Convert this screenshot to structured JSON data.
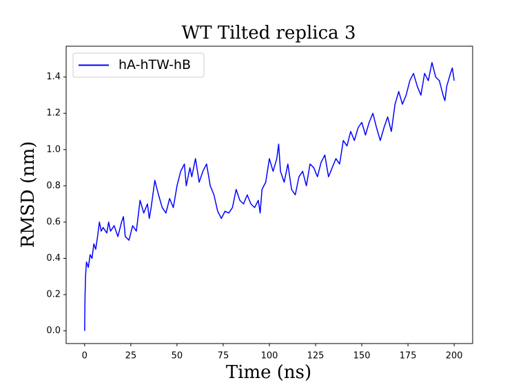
{
  "chart_data": {
    "type": "line",
    "title": "WT Tilted replica 3",
    "xlabel": "Time (ns)",
    "ylabel": "RMSD (nm)",
    "x": [
      0,
      0.2,
      0.5,
      1,
      2,
      3,
      4,
      5,
      6,
      7,
      8,
      9,
      10,
      12,
      13,
      14,
      16,
      18,
      20,
      21,
      22,
      24,
      26,
      28,
      30,
      32,
      34,
      35,
      36,
      38,
      40,
      42,
      44,
      46,
      48,
      50,
      52,
      54,
      55,
      57,
      58,
      60,
      62,
      64,
      66,
      68,
      70,
      72,
      74,
      76,
      78,
      80,
      82,
      84,
      86,
      88,
      90,
      92,
      94,
      95,
      96,
      98,
      100,
      102,
      104,
      105,
      106,
      108,
      110,
      112,
      114,
      116,
      118,
      120,
      122,
      124,
      126,
      128,
      130,
      132,
      134,
      136,
      138,
      140,
      142,
      144,
      146,
      148,
      150,
      152,
      154,
      156,
      158,
      160,
      162,
      164,
      166,
      168,
      170,
      172,
      174,
      176,
      178,
      180,
      182,
      184,
      186,
      188,
      190,
      192,
      194,
      195,
      196,
      198,
      199,
      200
    ],
    "series": [
      {
        "name": "hA-hTW-hB",
        "color": "#0000ff",
        "values": [
          0.0,
          0.18,
          0.3,
          0.38,
          0.35,
          0.42,
          0.4,
          0.48,
          0.45,
          0.52,
          0.6,
          0.55,
          0.57,
          0.54,
          0.6,
          0.55,
          0.58,
          0.52,
          0.6,
          0.63,
          0.52,
          0.5,
          0.58,
          0.55,
          0.72,
          0.65,
          0.7,
          0.62,
          0.68,
          0.83,
          0.75,
          0.68,
          0.65,
          0.73,
          0.68,
          0.8,
          0.88,
          0.92,
          0.8,
          0.9,
          0.85,
          0.95,
          0.82,
          0.88,
          0.92,
          0.8,
          0.75,
          0.66,
          0.62,
          0.66,
          0.65,
          0.68,
          0.78,
          0.72,
          0.7,
          0.75,
          0.7,
          0.68,
          0.72,
          0.65,
          0.78,
          0.82,
          0.95,
          0.88,
          0.95,
          1.03,
          0.88,
          0.82,
          0.92,
          0.78,
          0.75,
          0.85,
          0.88,
          0.8,
          0.92,
          0.9,
          0.85,
          0.93,
          0.97,
          0.85,
          0.9,
          0.95,
          0.92,
          1.05,
          1.02,
          1.1,
          1.05,
          1.12,
          1.15,
          1.08,
          1.15,
          1.2,
          1.12,
          1.05,
          1.12,
          1.18,
          1.1,
          1.25,
          1.32,
          1.25,
          1.3,
          1.38,
          1.42,
          1.35,
          1.3,
          1.42,
          1.38,
          1.48,
          1.4,
          1.38,
          1.3,
          1.27,
          1.35,
          1.42,
          1.45,
          1.38
        ]
      }
    ],
    "xlim": [
      -10,
      210
    ],
    "ylim": [
      -0.07,
      1.57
    ],
    "xticks": [
      0,
      25,
      50,
      75,
      100,
      125,
      150,
      175,
      200
    ],
    "yticks": [
      {
        "value": 0,
        "label": "0.0"
      },
      {
        "value": 0.2,
        "label": "0.2"
      },
      {
        "value": 0.4,
        "label": "0.4"
      },
      {
        "value": 0.6,
        "label": "0.6"
      },
      {
        "value": 0.8,
        "label": "0.8"
      },
      {
        "value": 1,
        "label": "1.0"
      },
      {
        "value": 1.2,
        "label": "1.2"
      },
      {
        "value": 1.4,
        "label": "1.4"
      }
    ],
    "legend": "upper left"
  }
}
